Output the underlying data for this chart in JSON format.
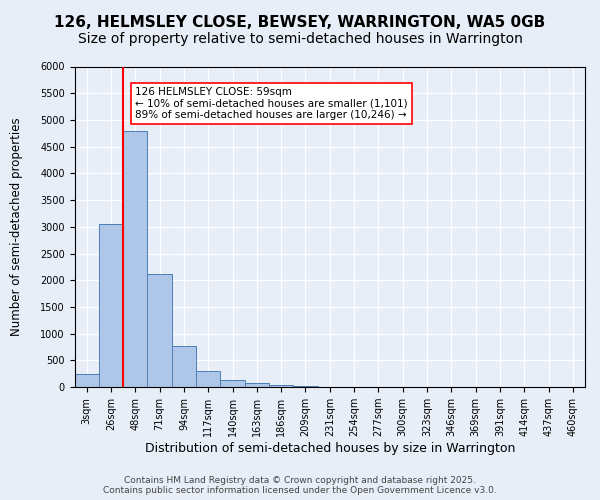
{
  "title": "126, HELMSLEY CLOSE, BEWSEY, WARRINGTON, WA5 0GB",
  "subtitle": "Size of property relative to semi-detached houses in Warrington",
  "xlabel": "Distribution of semi-detached houses by size in Warrington",
  "ylabel": "Number of semi-detached properties",
  "bin_labels": [
    "3sqm",
    "26sqm",
    "48sqm",
    "71sqm",
    "94sqm",
    "117sqm",
    "140sqm",
    "163sqm",
    "186sqm",
    "209sqm",
    "231sqm",
    "254sqm",
    "277sqm",
    "300sqm",
    "323sqm",
    "346sqm",
    "369sqm",
    "391sqm",
    "414sqm",
    "437sqm",
    "460sqm"
  ],
  "bar_values": [
    240,
    3050,
    4800,
    2120,
    775,
    310,
    140,
    70,
    35,
    15,
    8,
    5,
    3,
    2,
    1,
    1,
    0,
    0,
    0,
    0,
    0
  ],
  "bar_color": "#aec6e8",
  "bar_edge_color": "#4a7eb5",
  "vline_color": "red",
  "vline_pos": 1.5,
  "annotation_text": "126 HELMSLEY CLOSE: 59sqm\n← 10% of semi-detached houses are smaller (1,101)\n89% of semi-detached houses are larger (10,246) →",
  "annotation_box_color": "white",
  "annotation_box_edge": "red",
  "ylim": [
    0,
    6000
  ],
  "yticks": [
    0,
    500,
    1000,
    1500,
    2000,
    2500,
    3000,
    3500,
    4000,
    4500,
    5000,
    5500,
    6000
  ],
  "background_color": "#e8eef8",
  "plot_bg_color": "#e8eef8",
  "footer_text": "Contains HM Land Registry data © Crown copyright and database right 2025.\nContains public sector information licensed under the Open Government Licence v3.0.",
  "title_fontsize": 11,
  "subtitle_fontsize": 10,
  "xlabel_fontsize": 9,
  "ylabel_fontsize": 8.5,
  "tick_fontsize": 7,
  "annotation_fontsize": 7.5,
  "footer_fontsize": 6.5
}
